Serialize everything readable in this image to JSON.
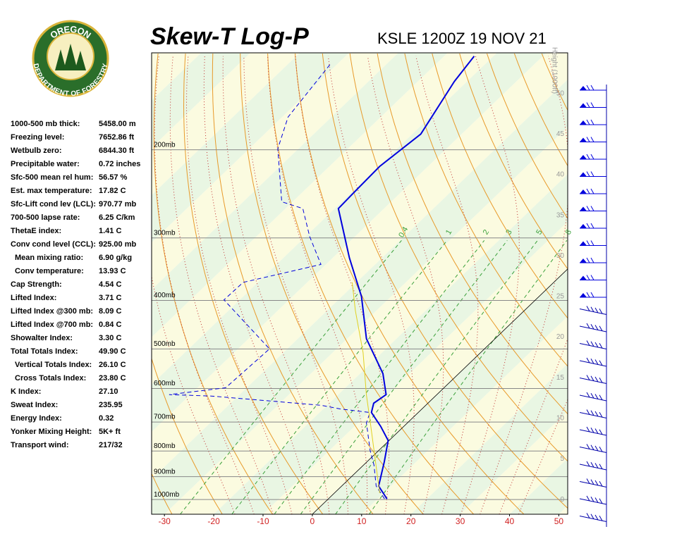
{
  "logo": {
    "top_text": "OREGON",
    "bottom_text": "DEPARTMENT OF FORESTRY"
  },
  "stats": [
    {
      "label": "1000-500 mb thick:",
      "value": "5458.00 m"
    },
    {
      "label": "Freezing level:",
      "value": "7652.86 ft"
    },
    {
      "label": "Wetbulb zero:",
      "value": "6844.30 ft"
    },
    {
      "label": "Precipitable water:",
      "value": "0.72 inches"
    },
    {
      "label": "Sfc-500 mean rel hum:",
      "value": "56.57 %"
    },
    {
      "label": "Est. max temperature:",
      "value": "17.82 C"
    },
    {
      "label": "Sfc-Lift cond lev (LCL):",
      "value": "970.77 mb"
    },
    {
      "label": "700-500 lapse rate:",
      "value": "6.25 C/km"
    },
    {
      "label": "ThetaE index:",
      "value": "1.41 C"
    },
    {
      "label": "Conv cond level (CCL):",
      "value": "925.00 mb"
    },
    {
      "label": "Mean mixing ratio:",
      "value": "6.90 g/kg",
      "indent": true
    },
    {
      "label": "Conv temperature:",
      "value": "13.93 C",
      "indent": true
    },
    {
      "label": "Cap Strength:",
      "value": "4.54 C"
    },
    {
      "label": "Lifted Index:",
      "value": "3.71 C"
    },
    {
      "label": "Lifted Index @300 mb:",
      "value": "8.09 C"
    },
    {
      "label": "Lifted Index @700 mb:",
      "value": "0.84 C"
    },
    {
      "label": "Showalter Index:",
      "value": "3.30 C"
    },
    {
      "label": "Total Totals Index:",
      "value": "49.90 C"
    },
    {
      "label": "Vertical Totals Index:",
      "value": "26.10 C",
      "indent": true
    },
    {
      "label": "Cross Totals Index:",
      "value": "23.80 C",
      "indent": true
    },
    {
      "label": "K Index:",
      "value": "27.10"
    },
    {
      "label": "Sweat Index:",
      "value": "235.95"
    },
    {
      "label": "Energy Index:",
      "value": "0.32"
    },
    {
      "label": "Yonker Mixing Height:",
      "value": "5K+ ft"
    },
    {
      "label": "Transport wind:",
      "value": "217/32"
    }
  ],
  "chart_data": {
    "type": "skewt",
    "title": "Skew-T Log-P",
    "subtitle": "KSLE 1200Z 19 NOV 21",
    "xlim": [
      -32.6,
      51.8
    ],
    "xticks": [
      -30,
      -20,
      -10,
      0,
      10,
      20,
      30,
      40,
      50
    ],
    "ylim": [
      1070,
      128
    ],
    "yscale": "log",
    "yticks": [
      {
        "value": 1000,
        "label": "1000mb"
      },
      {
        "value": 900,
        "label": "900mb"
      },
      {
        "value": 800,
        "label": "800mb"
      },
      {
        "value": 700,
        "label": "700mb"
      },
      {
        "value": 600,
        "label": "600mb"
      },
      {
        "value": 500,
        "label": "500mb"
      },
      {
        "value": 400,
        "label": "400mb"
      },
      {
        "value": 300,
        "label": "300mb"
      },
      {
        "value": 200,
        "label": "200mb"
      }
    ],
    "height_label": "Height (1000ft)",
    "height_lim": [
      -1.8,
      55.0
    ],
    "height_ticks": [
      0,
      5,
      10,
      15,
      20,
      25,
      30,
      35,
      40,
      45,
      50
    ],
    "mixing_ratios": [
      0.4,
      1,
      2,
      3,
      5,
      8
    ],
    "series": [
      {
        "color": "#0000dd",
        "style": "solid",
        "width": 2,
        "pressure": [
          997,
          940,
          840,
          762,
          714,
          670,
          642,
          617,
          560,
          477,
          393,
          329,
          262,
          245,
          216,
          186,
          146,
          130
        ],
        "values": [
          11.9,
          7.5,
          3.5,
          -0.2,
          -4.7,
          -9.5,
          -11.0,
          -10.3,
          -15.4,
          -26.1,
          -36.0,
          -46.6,
          -59.3,
          -59.5,
          -59.8,
          -58.3,
          -62.6,
          -63.9
        ]
      },
      {
        "color": "#0000dd",
        "style": "dashed",
        "width": 1,
        "pressure": [
          997,
          940,
          853,
          800,
          703,
          670,
          659,
          648,
          621,
          617,
          598,
          500,
          399,
          368,
          339,
          298,
          262,
          254,
          199,
          172,
          135
        ],
        "values": [
          11.4,
          7.0,
          2.1,
          -1.6,
          -8.3,
          -9.8,
          -16.6,
          -21.3,
          -45.5,
          -54.3,
          -44.3,
          -43.6,
          -63.2,
          -63.0,
          -51.0,
          -59.2,
          -66.5,
          -72.2,
          -84.2,
          -88.8,
          -91.4
        ]
      },
      {
        "color": "#e0d020",
        "style": "solid",
        "width": 1,
        "pressure": [
          971,
          703,
          617,
          509,
          419,
          368
        ],
        "values": [
          9.2,
          -7.5,
          -14.3,
          -23.8,
          -34.3,
          -40.9
        ]
      }
    ]
  }
}
